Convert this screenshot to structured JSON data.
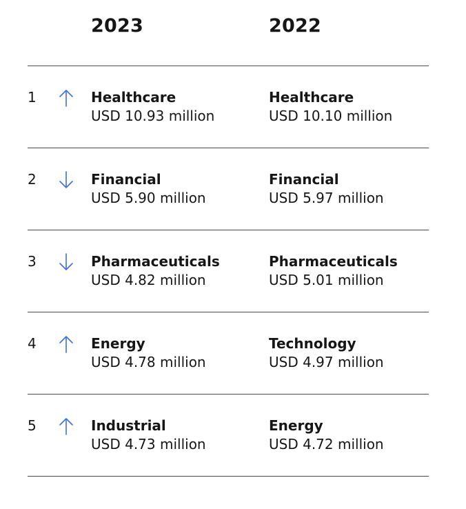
{
  "columns": {
    "year_2023": "2023",
    "year_2022": "2022"
  },
  "trend_colors": {
    "arrow": "#3d6ee8"
  },
  "rows": [
    {
      "rank": "1",
      "trend": "up-arrow-icon",
      "y2023": {
        "industry": "Healthcare",
        "cost": "USD 10.93 million"
      },
      "y2022": {
        "industry": "Healthcare",
        "cost": "USD 10.10 million"
      }
    },
    {
      "rank": "2",
      "trend": "down-arrow-icon",
      "y2023": {
        "industry": "Financial",
        "cost": "USD 5.90 million"
      },
      "y2022": {
        "industry": "Financial",
        "cost": "USD 5.97 million"
      }
    },
    {
      "rank": "3",
      "trend": "down-arrow-icon",
      "y2023": {
        "industry": "Pharmaceuticals",
        "cost": "USD 4.82 million"
      },
      "y2022": {
        "industry": "Pharmaceuticals",
        "cost": "USD 5.01 million"
      }
    },
    {
      "rank": "4",
      "trend": "up-arrow-icon",
      "y2023": {
        "industry": "Energy",
        "cost": "USD 4.78 million"
      },
      "y2022": {
        "industry": "Technology",
        "cost": "USD 4.97 million"
      }
    },
    {
      "rank": "5",
      "trend": "up-arrow-icon",
      "y2023": {
        "industry": "Industrial",
        "cost": "USD 4.73 million"
      },
      "y2022": {
        "industry": "Energy",
        "cost": "USD 4.72 million"
      }
    }
  ]
}
